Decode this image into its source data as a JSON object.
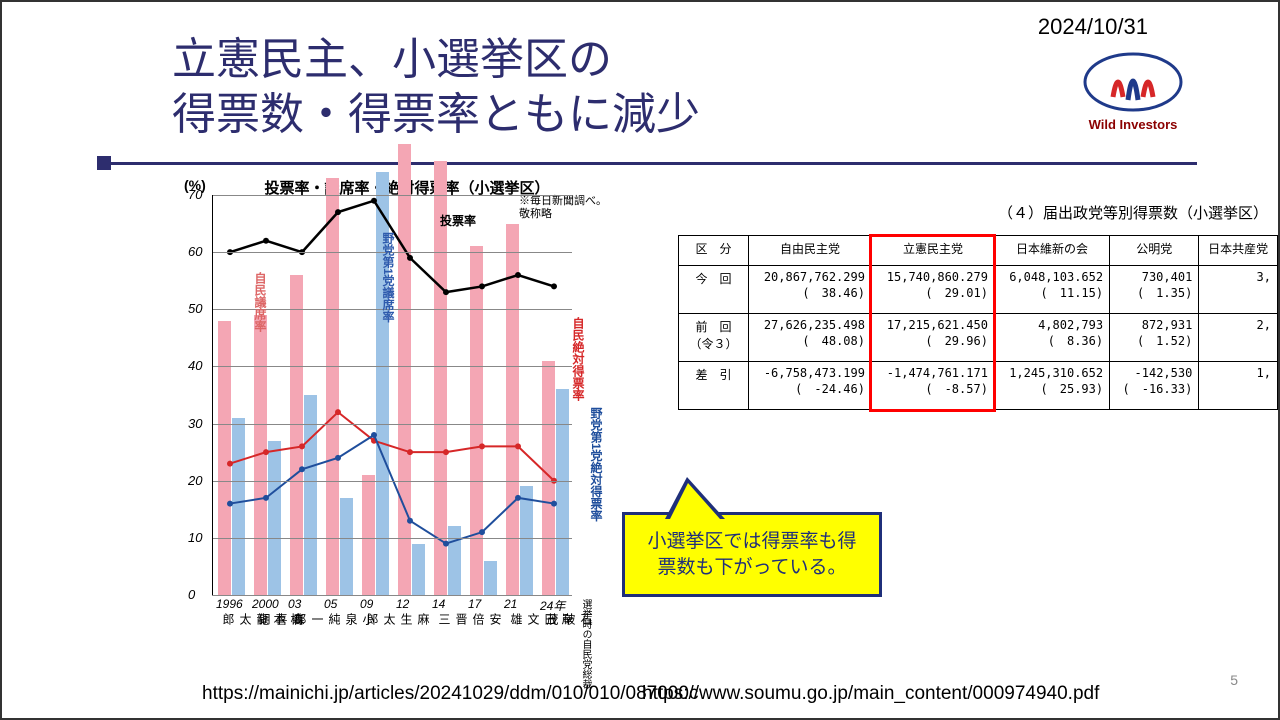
{
  "date": "2024/10/31",
  "logo_text": "Wild Investors",
  "title_line1": "立憲民主、小選挙区の",
  "title_line2": "得票数・得票率ともに減少",
  "page_number": "5",
  "chart": {
    "title": "投票率・議席率・絶対得票率（小選挙区）",
    "y_unit": "(%)",
    "note_line1": "※毎日新聞調べ。",
    "note_line2": "敬称略",
    "ymin": 0,
    "ymax": 70,
    "ytick_step": 10,
    "grid_color": "#888888",
    "x_years": [
      "1996",
      "2000",
      "03",
      "05",
      "09",
      "12",
      "14",
      "17",
      "21",
      "24年"
    ],
    "x_names": [
      "橋本龍太郎",
      "森喜朗",
      "小泉純一郎",
      "",
      "麻生太郎",
      "",
      "安倍晋三",
      "",
      "岸田文雄",
      "石破茂"
    ],
    "x_axis_note": "選挙時の\n自民党総裁",
    "series": {
      "pink_bars": {
        "label": "自民議席率",
        "color": "#f4a6b4",
        "values": [
          48,
          49,
          56,
          73,
          21,
          79,
          76,
          61,
          65,
          41
        ]
      },
      "blue_bars": {
        "label": "野党第1党議席率",
        "color": "#9dc3e6",
        "values": [
          31,
          27,
          35,
          17,
          74,
          9,
          12,
          6,
          19,
          36
        ]
      },
      "black_line": {
        "label": "投票率",
        "color": "#000000",
        "values": [
          60,
          62,
          60,
          67,
          69,
          59,
          53,
          54,
          56,
          54
        ]
      },
      "red_line": {
        "label": "自民絶対得票率",
        "color": "#d62728",
        "values": [
          23,
          25,
          26,
          32,
          27,
          25,
          25,
          26,
          26,
          20
        ]
      },
      "blue_line": {
        "label": "野党第1党絶対得票率",
        "color": "#1f4e9c",
        "values": [
          16,
          17,
          22,
          24,
          28,
          13,
          9,
          11,
          17,
          16
        ]
      }
    },
    "annotations": {
      "pink_label": "自民議席率",
      "blue_bar_label": "野党第1党議席率",
      "black_label": "投票率",
      "red_label": "自民絶対得票率",
      "blue_line_label": "野党第1党絶対得票率"
    }
  },
  "table": {
    "caption": "（４）届出政党等別得票数（小選挙区）",
    "columns": [
      "区　分",
      "自由民主党",
      "立憲民主党",
      "日本維新の会",
      "公明党",
      "日本共産党"
    ],
    "rows": [
      {
        "head": "今　回",
        "cells": [
          "20,867,762.299\n(　38.46)",
          "15,740,860.279\n(　29.01)",
          "6,048,103.652\n(　11.15)",
          "730,401\n(　1.35)",
          "3,"
        ]
      },
      {
        "head": "前　回\n（令３）",
        "cells": [
          "27,626,235.498\n(　48.08)",
          "17,215,621.450\n(　29.96)",
          "4,802,793\n(　8.36)",
          "872,931\n(　1.52)",
          "2,"
        ]
      },
      {
        "head": "差　引",
        "cells": [
          "-6,758,473.199\n(　-24.46)",
          "-1,474,761.171\n(　-8.57)",
          "1,245,310.652\n(　25.93)",
          "-142,530\n(　-16.33)",
          "1,"
        ]
      }
    ],
    "highlight_col": 2
  },
  "callout": "小選挙区では得票率も得票数も下がっている。",
  "sources": {
    "left": "https://mainichi.jp/articles/20241029/ddm/010/010/087000c",
    "right": "https://www.soumu.go.jp/main_content/000974940.pdf"
  }
}
